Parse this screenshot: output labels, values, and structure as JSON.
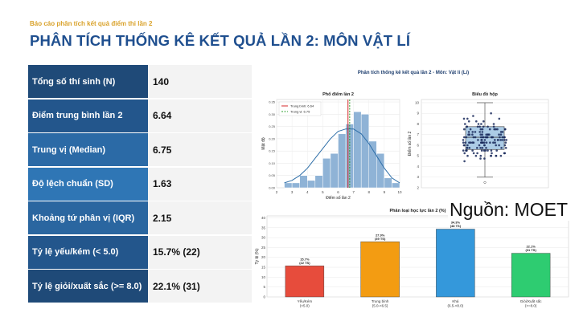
{
  "header": {
    "tag": "Báo cáo phân tích kết quả điểm thi lần 2",
    "title": "PHÂN TÍCH THỐNG KÊ KẾT QUẢ LẦN 2: MÔN VẬT LÍ"
  },
  "stats": [
    {
      "label": "Tổng số thí sinh (N)",
      "value": "140",
      "color": "#1f4a78"
    },
    {
      "label": "Điểm trung bình lần 2",
      "value": "6.64",
      "color": "#23568c"
    },
    {
      "label": "Trung vị (Median)",
      "value": "6.75",
      "color": "#2b6aa6"
    },
    {
      "label": "Độ lệch chuẩn (SD)",
      "value": "1.63",
      "color": "#2f76b5"
    },
    {
      "label": "Khoảng tứ phân vị (IQR)",
      "value": "2.15",
      "color": "#2a66a0"
    },
    {
      "label": "Tỷ lệ yếu/kém (< 5.0)",
      "value": "15.7% (22)",
      "color": "#23568c"
    },
    {
      "label": "Tỷ lệ giỏi/xuất sắc (>= 8.0)",
      "value": "22.1% (31)",
      "color": "#1f4a78"
    }
  ],
  "figure": {
    "suptitle": "Phân tích thống kê kết quả lần 2 - Môn: Vật lí (Lí)"
  },
  "source_caption": "Nguồn: MOET",
  "chart_data": [
    {
      "type": "bar",
      "title": "Phổ điểm lần 2",
      "xlabel": "Điểm số lần 2",
      "ylabel": "Mật độ",
      "bin_edges": [
        2.5,
        3.0,
        3.5,
        4.0,
        4.5,
        5.0,
        5.5,
        6.0,
        6.5,
        7.0,
        7.5,
        8.0,
        8.5,
        9.0,
        9.5,
        10.0
      ],
      "values": [
        0.02,
        0.02,
        0.05,
        0.03,
        0.05,
        0.12,
        0.14,
        0.22,
        0.26,
        0.31,
        0.3,
        0.19,
        0.14,
        0.04,
        0.02
      ],
      "density_curve_x": [
        2.5,
        3.0,
        3.5,
        4.0,
        4.5,
        5.0,
        5.5,
        6.0,
        6.5,
        7.0,
        7.5,
        8.0,
        8.5,
        9.0,
        9.5,
        10.0
      ],
      "density_curve_y": [
        0.02,
        0.03,
        0.05,
        0.08,
        0.12,
        0.16,
        0.2,
        0.23,
        0.24,
        0.24,
        0.22,
        0.18,
        0.13,
        0.08,
        0.04,
        0.02
      ],
      "mean": 6.64,
      "median": 6.75,
      "legend": [
        "Trung bình: 6.64",
        "Trung vị: 6.75"
      ],
      "xticks": [
        "2",
        "3",
        "4",
        "5",
        "6",
        "7",
        "8",
        "9",
        "10"
      ],
      "yticks": [
        "0.00",
        "0.05",
        "0.10",
        "0.15",
        "0.20",
        "0.25",
        "0.30",
        "0.35"
      ],
      "xlim": [
        2,
        10
      ],
      "ylim": [
        0,
        0.36
      ],
      "colors": {
        "bars": "#8fb3d6",
        "curve": "#2f6fa8",
        "mean": "#d62728",
        "median": "#2ca02c"
      }
    },
    {
      "type": "scatter",
      "title": "Biểu đồ hộp",
      "ylabel": "Điểm số lần 2",
      "box": {
        "min": 3.0,
        "q1": 5.6,
        "median": 6.75,
        "q3": 7.75,
        "max": 10.0,
        "outlier": 2.5
      },
      "yticks": [
        "2",
        "3",
        "4",
        "5",
        "6",
        "7",
        "8",
        "9",
        "10"
      ],
      "ylim": [
        2,
        10.3
      ],
      "points_count": 140,
      "colors": {
        "box": "#9ec3e2",
        "points": "#1a2a5c"
      }
    },
    {
      "type": "bar",
      "title": "Phân loại học lực lần 2 (%)",
      "ylabel": "Tỷ lệ (%)",
      "categories": [
        "Yếu/Kém\n(<5.0)",
        "Trung bình\n(5.0-<6.5)",
        "Khá\n(6.5-<8.0)",
        "Giỏi/Xuất sắc\n(>=8.0)"
      ],
      "values": [
        15.7,
        27.9,
        34.3,
        22.1
      ],
      "data_labels": [
        "15.7%\n(22 TS)",
        "27.9%\n(39 TS)",
        "34.3%\n(48 TS)",
        "22.1%\n(31 TS)"
      ],
      "yticks": [
        "0",
        "5",
        "10",
        "15",
        "20",
        "25",
        "30",
        "35",
        "40"
      ],
      "ylim": [
        0,
        41
      ],
      "colors": [
        "#e74c3c",
        "#f39c12",
        "#3498db",
        "#2ecc71"
      ]
    }
  ]
}
